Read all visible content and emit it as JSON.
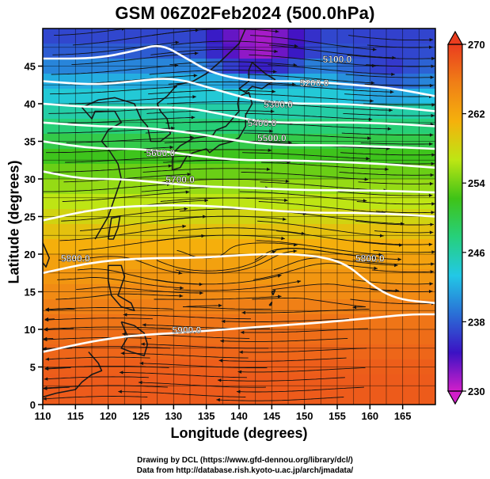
{
  "chart_data": {
    "type": "heatmap",
    "title": "GSM 06Z02Feb2024 (500.0hPa)",
    "xlabel": "Longitude (degrees)",
    "ylabel": "Latitude  (degrees)",
    "xlim": [
      110,
      170
    ],
    "ylim": [
      0,
      50
    ],
    "x_ticks": [
      110,
      115,
      120,
      125,
      130,
      135,
      140,
      145,
      150,
      155,
      160,
      165
    ],
    "y_ticks": [
      0,
      5,
      10,
      15,
      20,
      25,
      30,
      35,
      40,
      45
    ],
    "colorbar": {
      "min": 230,
      "max": 270,
      "ticks": [
        230,
        238,
        246,
        254,
        262,
        270
      ],
      "colors": [
        "#d11fc9",
        "#3b12c4",
        "#2a6fd6",
        "#22c8e6",
        "#26d07c",
        "#3fc317",
        "#bde614",
        "#f5b10c",
        "#f07f16",
        "#ea3d1f"
      ]
    },
    "temperature_field": {
      "lat": [
        48,
        44,
        40,
        36,
        32,
        28,
        24,
        20,
        16,
        12,
        8,
        4,
        0
      ],
      "value_by_lat": [
        237,
        241,
        245,
        249,
        253,
        256,
        259,
        262,
        264,
        266,
        267,
        268,
        268
      ],
      "cold_cores": [
        {
          "lon": 143,
          "lat": 48,
          "value": 230
        },
        {
          "lon": 163,
          "lat": 45,
          "value": 236
        }
      ]
    },
    "height_contours": [
      {
        "label": "5100.0",
        "points": [
          [
            110,
            46
          ],
          [
            118,
            46
          ],
          [
            124,
            47
          ],
          [
            128,
            48
          ],
          [
            132,
            46
          ],
          [
            136,
            44
          ],
          [
            142,
            43
          ],
          [
            150,
            43
          ],
          [
            158,
            42.5
          ],
          [
            164,
            42
          ],
          [
            170,
            41
          ]
        ]
      },
      {
        "label": "5200.0",
        "points": [
          [
            110,
            43
          ],
          [
            118,
            42.5
          ],
          [
            124,
            43
          ],
          [
            130,
            43.5
          ],
          [
            136,
            42
          ],
          [
            142,
            40.5
          ],
          [
            148,
            40
          ],
          [
            156,
            40
          ],
          [
            164,
            39.5
          ],
          [
            170,
            39
          ]
        ]
      },
      {
        "label": "5300.0",
        "points": [
          [
            110,
            40
          ],
          [
            118,
            39.5
          ],
          [
            126,
            39.5
          ],
          [
            132,
            39.5
          ],
          [
            138,
            38.5
          ],
          [
            144,
            37.5
          ],
          [
            152,
            37.5
          ],
          [
            160,
            37.5
          ],
          [
            170,
            37
          ]
        ]
      },
      {
        "label": "5400.0",
        "points": [
          [
            110,
            37.5
          ],
          [
            118,
            37
          ],
          [
            126,
            36.8
          ],
          [
            134,
            36
          ],
          [
            140,
            35
          ],
          [
            146,
            34.5
          ],
          [
            154,
            34.5
          ],
          [
            162,
            34.3
          ],
          [
            170,
            34
          ]
        ]
      },
      {
        "label": "5500.0",
        "points": [
          [
            110,
            35
          ],
          [
            118,
            34
          ],
          [
            126,
            34
          ],
          [
            134,
            33
          ],
          [
            140,
            32.5
          ],
          [
            146,
            32.5
          ],
          [
            154,
            32.3
          ],
          [
            162,
            32
          ],
          [
            170,
            31.5
          ]
        ]
      },
      {
        "label": "5600.0",
        "points": [
          [
            110,
            31
          ],
          [
            116,
            30
          ],
          [
            122,
            30
          ],
          [
            128,
            29.5
          ],
          [
            134,
            29
          ],
          [
            142,
            28.8
          ],
          [
            150,
            28.5
          ],
          [
            160,
            28.5
          ],
          [
            170,
            28.2
          ]
        ]
      },
      {
        "label": "5700.0",
        "points": [
          [
            110,
            24.5
          ],
          [
            118,
            26
          ],
          [
            126,
            26.5
          ],
          [
            134,
            26.5
          ],
          [
            142,
            26
          ],
          [
            150,
            25.5
          ],
          [
            160,
            25.5
          ],
          [
            170,
            25
          ]
        ]
      },
      {
        "label": "5800.0",
        "points": [
          [
            110,
            17.5
          ],
          [
            118,
            19
          ],
          [
            126,
            19.5
          ],
          [
            134,
            19.5
          ],
          [
            142,
            20
          ],
          [
            150,
            20
          ],
          [
            156,
            19
          ],
          [
            160,
            16
          ],
          [
            164,
            14
          ],
          [
            170,
            13.5
          ]
        ]
      },
      {
        "label": "5900.0",
        "points": [
          [
            110,
            7
          ],
          [
            118,
            8.5
          ],
          [
            124,
            9.2
          ],
          [
            130,
            9.5
          ],
          [
            138,
            10
          ],
          [
            146,
            10.5
          ],
          [
            154,
            11
          ],
          [
            160,
            11.5
          ],
          [
            166,
            12
          ],
          [
            170,
            12
          ]
        ]
      }
    ],
    "contour_labels": [
      {
        "text": "5100.0",
        "lon": 155,
        "lat": 45.5
      },
      {
        "text": "5200.0",
        "lon": 151.5,
        "lat": 42.3
      },
      {
        "text": "5300.0",
        "lon": 146,
        "lat": 39.5
      },
      {
        "text": "5400.0",
        "lon": 143.5,
        "lat": 37
      },
      {
        "text": "5500.0",
        "lon": 145,
        "lat": 35
      },
      {
        "text": "5600.0",
        "lon": 128,
        "lat": 33
      },
      {
        "text": "5700.0",
        "lon": 131,
        "lat": 29.5
      },
      {
        "text": "5800.0",
        "lon": 115,
        "lat": 19
      },
      {
        "text": "5800.0",
        "lon": 160,
        "lat": 19
      },
      {
        "text": "5900.0",
        "lon": 132,
        "lat": 9.5
      }
    ]
  },
  "credits": {
    "line1": "Drawing by DCL (https://www.gfd-dennou.org/library/dcl/)",
    "line2": "Data from http://database.rish.kyoto-u.ac.jp/arch/jmadata/"
  }
}
